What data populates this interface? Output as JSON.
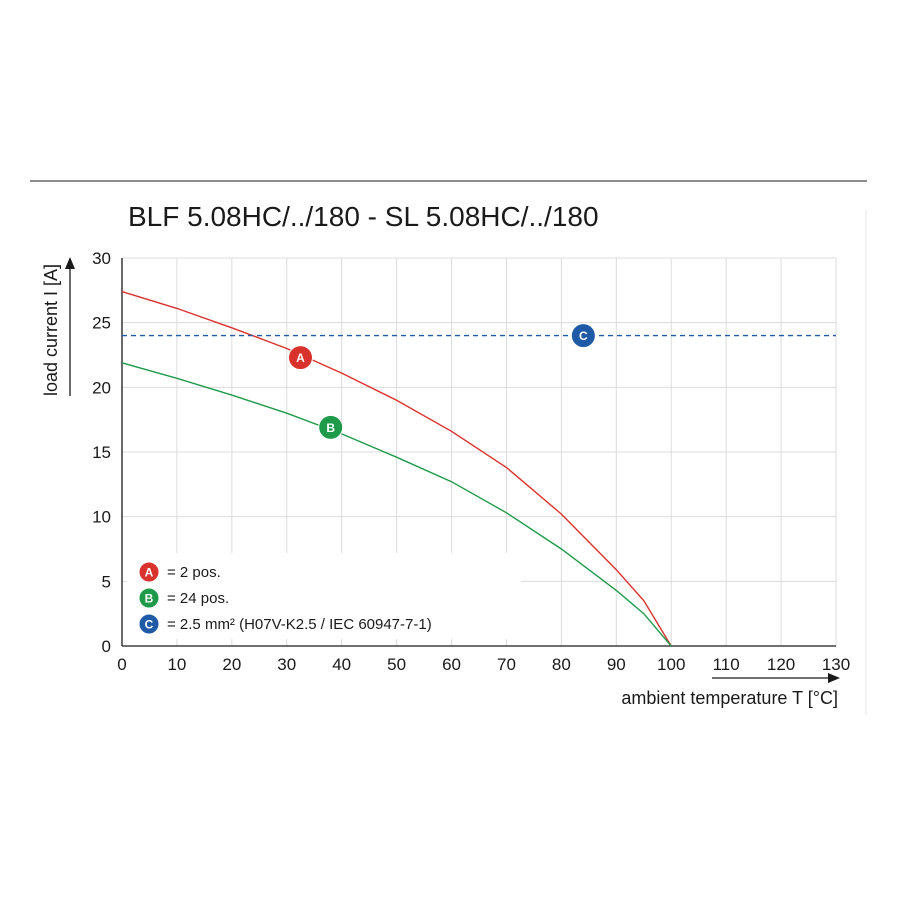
{
  "chart_data": {
    "type": "line",
    "title": "BLF 5.08HC/../180 - SL 5.08HC/../180",
    "xlabel": "ambient temperature T [°C]",
    "ylabel": "load current I [A]",
    "xlim": [
      0,
      130
    ],
    "ylim": [
      0,
      30
    ],
    "x_ticks": [
      "0",
      "10",
      "20",
      "30",
      "40",
      "50",
      "60",
      "70",
      "80",
      "90",
      "100",
      "110",
      "120",
      "130"
    ],
    "y_ticks": [
      "0",
      "5",
      "10",
      "15",
      "20",
      "25",
      "30"
    ],
    "grid": true,
    "legend_position": "bottom-left",
    "series": [
      {
        "name": "A",
        "color": "#d9322c",
        "x": [
          0,
          10,
          20,
          30,
          40,
          50,
          60,
          70,
          80,
          90,
          95,
          100
        ],
        "y": [
          27.4,
          26.1,
          24.6,
          23.0,
          21.1,
          19.0,
          16.6,
          13.8,
          10.2,
          5.9,
          3.5,
          0
        ],
        "marker_x": 32.5,
        "marker_y": 22.3
      },
      {
        "name": "B",
        "color": "#1f9a4a",
        "x": [
          0,
          10,
          20,
          30,
          40,
          50,
          60,
          70,
          80,
          90,
          95,
          100
        ],
        "y": [
          21.9,
          20.7,
          19.4,
          18.0,
          16.4,
          14.6,
          12.7,
          10.3,
          7.5,
          4.3,
          2.5,
          0
        ],
        "marker_x": 38,
        "marker_y": 16.9
      },
      {
        "name": "C",
        "color": "#1f5aa6",
        "dashed": true,
        "x": [
          0,
          130
        ],
        "y": [
          24,
          24
        ],
        "marker_x": 84,
        "marker_y": 24
      }
    ],
    "legend": [
      {
        "badge": "A",
        "text": "= 2 pos.",
        "color": "#d9322c"
      },
      {
        "badge": "B",
        "text": "= 24 pos.",
        "color": "#1f9a4a"
      },
      {
        "badge": "C",
        "text": "= 2.5 mm² (H07V-K2.5 / IEC 60947-7-1)",
        "color": "#1f5aa6"
      }
    ]
  }
}
